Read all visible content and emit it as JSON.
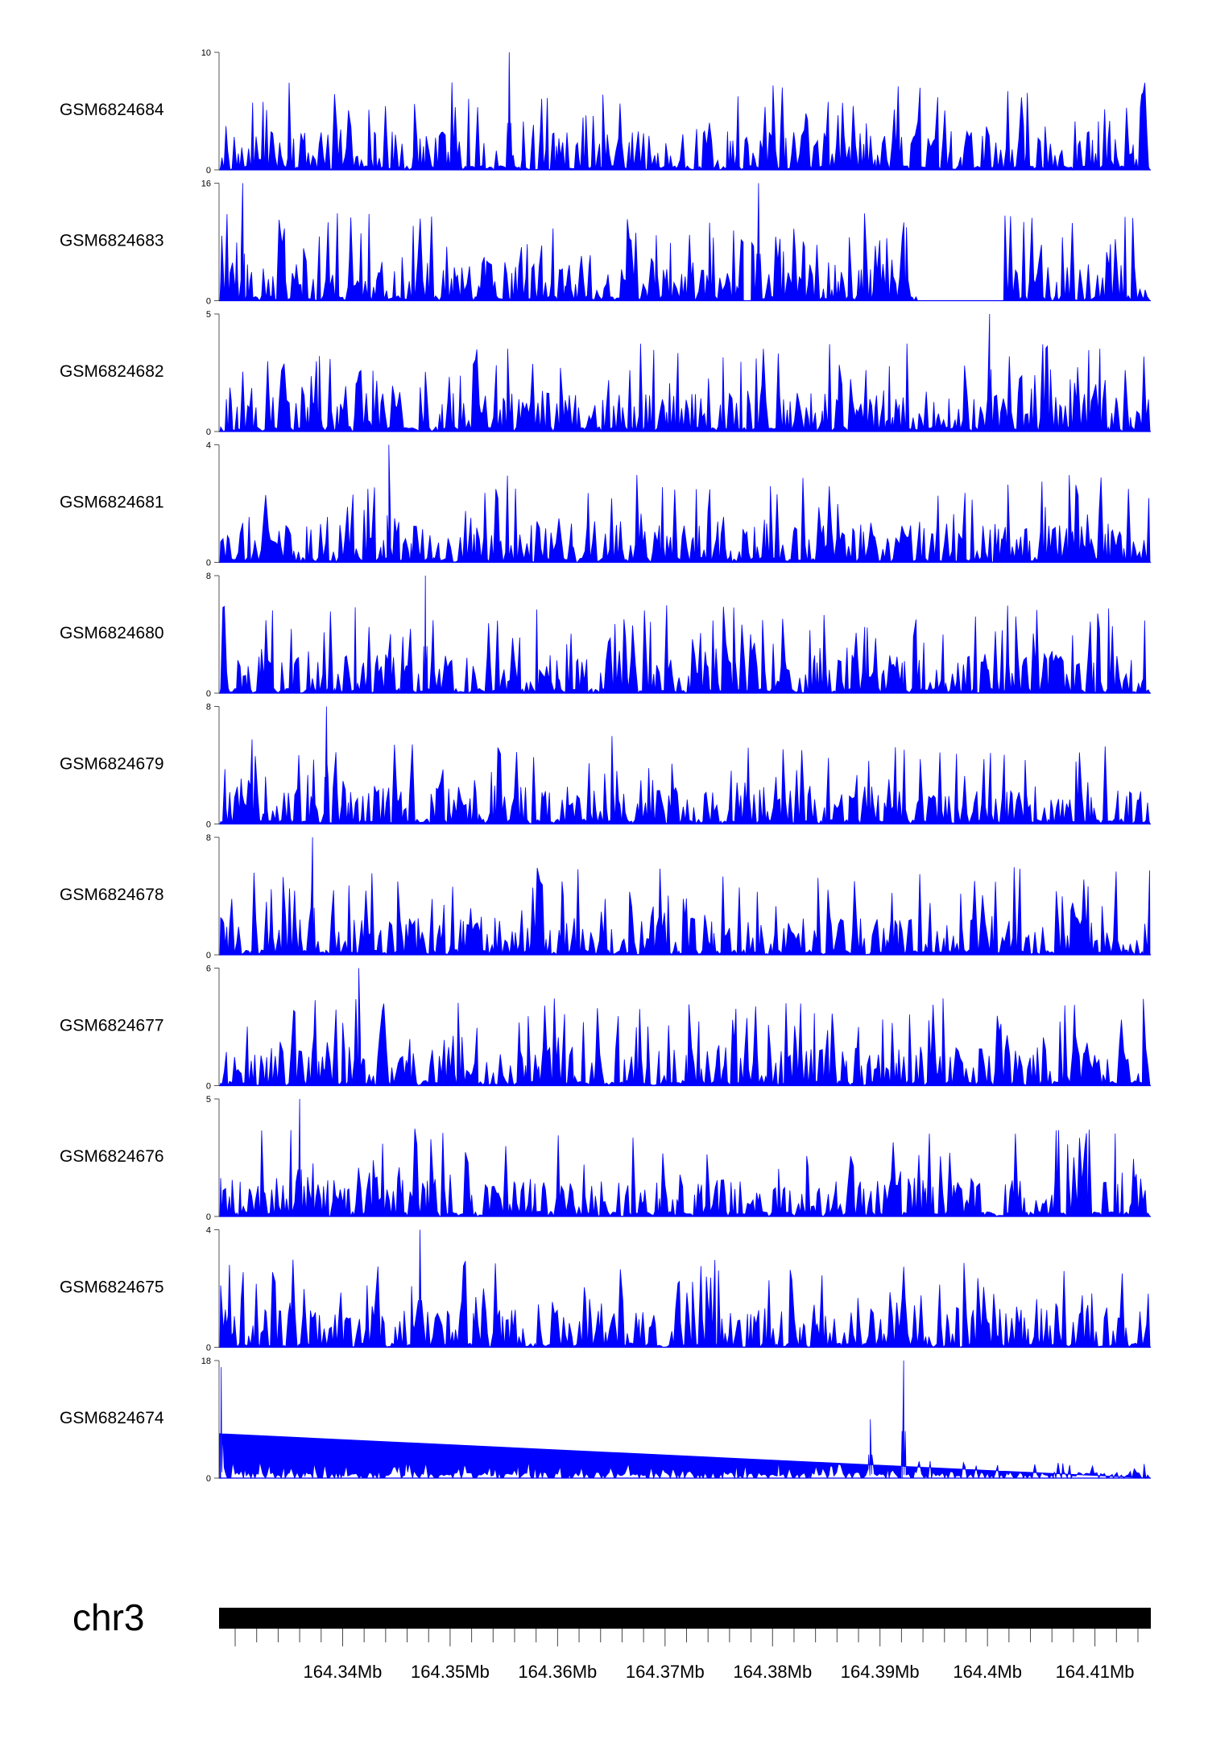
{
  "chart_data": {
    "type": "area",
    "title": "",
    "color": "#0000ff",
    "chromosome": "chr3",
    "x_range_mb": [
      164.3285,
      164.4152
    ],
    "x_ticks": [
      "164.34Mb",
      "164.35Mb",
      "164.36Mb",
      "164.37Mb",
      "164.38Mb",
      "164.39Mb",
      "164.4Mb",
      "164.41Mb"
    ],
    "x_tick_values": [
      164.34,
      164.35,
      164.36,
      164.37,
      164.38,
      164.39,
      164.4,
      164.41
    ],
    "tracks": [
      {
        "name": "GSM6824684",
        "ymax": 10,
        "ymin": 0,
        "ymax_label": "10",
        "ymin_label": "0",
        "peaks": [
          [
            164.3555,
            10
          ]
        ],
        "gaps": [],
        "baseline": 0.25
      },
      {
        "name": "GSM6824683",
        "ymax": 16,
        "ymin": 0,
        "ymax_label": "16",
        "ymin_label": "0",
        "peaks": [
          [
            164.3307,
            16
          ],
          [
            164.3787,
            16
          ]
        ],
        "gaps": [
          [
            164.3773,
            164.378
          ],
          [
            164.3935,
            164.4015
          ]
        ],
        "baseline": 0.3
      },
      {
        "name": "GSM6824682",
        "ymax": 5,
        "ymin": 0,
        "ymax_label": "5",
        "ymin_label": "0",
        "peaks": [
          [
            164.4002,
            5
          ]
        ],
        "gaps": [],
        "baseline": 0.3
      },
      {
        "name": "GSM6824681",
        "ymax": 4,
        "ymin": 0,
        "ymax_label": "4",
        "ymin_label": "0",
        "peaks": [
          [
            164.3443,
            4
          ]
        ],
        "gaps": [],
        "baseline": 0.3
      },
      {
        "name": "GSM6824680",
        "ymax": 8,
        "ymin": 0,
        "ymax_label": "8",
        "ymin_label": "0",
        "peaks": [
          [
            164.3477,
            8
          ]
        ],
        "gaps": [],
        "baseline": 0.3
      },
      {
        "name": "GSM6824679",
        "ymax": 8,
        "ymin": 0,
        "ymax_label": "8",
        "ymin_label": "0",
        "peaks": [
          [
            164.3385,
            8
          ]
        ],
        "gaps": [],
        "baseline": 0.3
      },
      {
        "name": "GSM6824678",
        "ymax": 8,
        "ymin": 0,
        "ymax_label": "8",
        "ymin_label": "0",
        "peaks": [
          [
            164.3372,
            8
          ]
        ],
        "gaps": [],
        "baseline": 0.3
      },
      {
        "name": "GSM6824677",
        "ymax": 6,
        "ymin": 0,
        "ymax_label": "6",
        "ymin_label": "0",
        "peaks": [
          [
            164.3415,
            6
          ]
        ],
        "gaps": [],
        "baseline": 0.3
      },
      {
        "name": "GSM6824676",
        "ymax": 5,
        "ymin": 0,
        "ymax_label": "5",
        "ymin_label": "0",
        "peaks": [
          [
            164.336,
            5
          ]
        ],
        "gaps": [],
        "baseline": 0.3
      },
      {
        "name": "GSM6824675",
        "ymax": 4,
        "ymin": 0,
        "ymax_label": "4",
        "ymin_label": "0",
        "peaks": [
          [
            164.3472,
            4
          ]
        ],
        "gaps": [],
        "baseline": 0.25
      },
      {
        "name": "GSM6824674",
        "ymax": 18,
        "ymin": 0,
        "ymax_label": "18",
        "ymin_label": "0",
        "peaks": [
          [
            164.3287,
            17
          ],
          [
            164.3891,
            9
          ],
          [
            164.3922,
            18
          ]
        ],
        "gaps": [],
        "baseline": 0.1
      }
    ]
  }
}
